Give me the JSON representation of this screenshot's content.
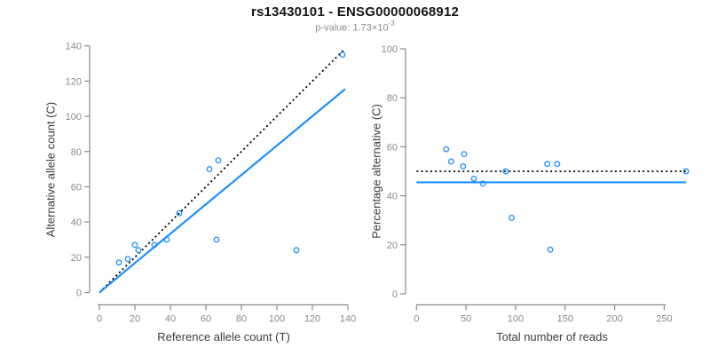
{
  "header": {
    "title": "rs13430101 - ENSG00000068912",
    "p_value_text": "p-value: 1.73×10",
    "p_value_exponent": "-3"
  },
  "colors": {
    "accent_blue": "#1E90FF",
    "dotted_black": "#000000",
    "axis_gray": "#8a8a8a",
    "subtitle_gray": "#8c8c8c"
  },
  "chart_data": [
    {
      "name": "allele-count-scatter",
      "type": "scatter",
      "xlabel": "Reference allele count (T)",
      "ylabel": "Alternative allele count (C)",
      "xlim": [
        0,
        140
      ],
      "ylim": [
        0,
        140
      ],
      "xticks": [
        0,
        20,
        40,
        60,
        80,
        100,
        120,
        140
      ],
      "yticks": [
        0,
        20,
        40,
        60,
        80,
        100,
        120,
        140
      ],
      "grid": false,
      "point_color": "#1E90FF",
      "points": [
        [
          11,
          17
        ],
        [
          16,
          19
        ],
        [
          20,
          27
        ],
        [
          22,
          24
        ],
        [
          31,
          27
        ],
        [
          38,
          30
        ],
        [
          45,
          45
        ],
        [
          62,
          70
        ],
        [
          66,
          30
        ],
        [
          67,
          75
        ],
        [
          111,
          24
        ],
        [
          137,
          135
        ]
      ],
      "lines": [
        {
          "name": "identity-line",
          "style": "dotted",
          "color": "#000000",
          "from": [
            0,
            0
          ],
          "to": [
            137.5,
            137.5
          ]
        },
        {
          "name": "regression-line",
          "style": "solid",
          "color": "#1E90FF",
          "from": [
            0,
            0
          ],
          "to": [
            138.5,
            115.5
          ]
        }
      ]
    },
    {
      "name": "percentage-vs-reads-scatter",
      "type": "scatter",
      "xlabel": "Total number of reads",
      "ylabel": "Percentage alternative (C)",
      "xlim": [
        0,
        272
      ],
      "ylim": [
        0,
        100
      ],
      "xticks": [
        0,
        50,
        100,
        150,
        200,
        250
      ],
      "yticks": [
        0,
        20,
        40,
        60,
        80,
        100
      ],
      "grid": false,
      "point_color": "#1E90FF",
      "points": [
        [
          30,
          59
        ],
        [
          35,
          54
        ],
        [
          47,
          52
        ],
        [
          48,
          57
        ],
        [
          58,
          47
        ],
        [
          67,
          45
        ],
        [
          90,
          50
        ],
        [
          96,
          31
        ],
        [
          132,
          53
        ],
        [
          135,
          18
        ],
        [
          142,
          53
        ],
        [
          272,
          50
        ]
      ],
      "lines": [
        {
          "name": "expected-percentage-line",
          "style": "dotted",
          "color": "#000000",
          "from": [
            0,
            50
          ],
          "to": [
            272,
            50
          ]
        },
        {
          "name": "fitted-percentage-line",
          "style": "solid",
          "color": "#1E90FF",
          "from": [
            0,
            45.5
          ],
          "to": [
            272,
            45.5
          ]
        }
      ]
    }
  ]
}
